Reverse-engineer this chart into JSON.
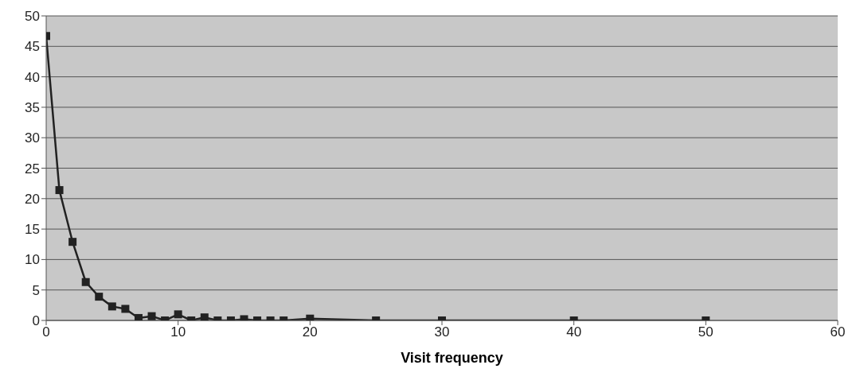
{
  "chart_data": {
    "type": "line",
    "xlabel": "Visit frequency",
    "x": [
      0,
      1,
      2,
      3,
      4,
      5,
      6,
      7,
      8,
      9,
      10,
      11,
      12,
      13,
      14,
      15,
      16,
      17,
      18,
      20,
      25,
      30,
      40,
      50
    ],
    "values": [
      46.7,
      21.4,
      12.9,
      6.3,
      3.9,
      2.3,
      1.9,
      0.4,
      0.7,
      0,
      1,
      0,
      0.5,
      0,
      0,
      0.2,
      0,
      0,
      0,
      0.3,
      0,
      0,
      0,
      0
    ],
    "color": "#222222",
    "marker": "square",
    "line_style": "solid",
    "xlim": [
      0,
      60
    ],
    "xticks": [
      0,
      10,
      20,
      30,
      40,
      50,
      60
    ],
    "ylim": [
      0,
      50
    ],
    "yticks": [
      0,
      5,
      10,
      15,
      20,
      25,
      30,
      35,
      40,
      45,
      50
    ],
    "grid": "y"
  }
}
